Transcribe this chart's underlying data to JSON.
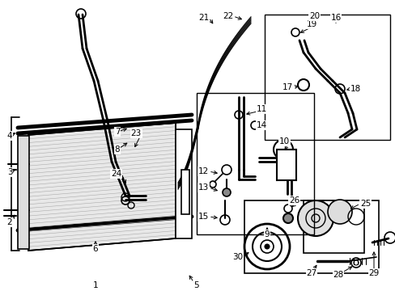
{
  "bg_color": "#ffffff",
  "line_color": "#000000",
  "gray_color": "#666666",
  "fig_width": 4.89,
  "fig_height": 3.6,
  "dpi": 100
}
